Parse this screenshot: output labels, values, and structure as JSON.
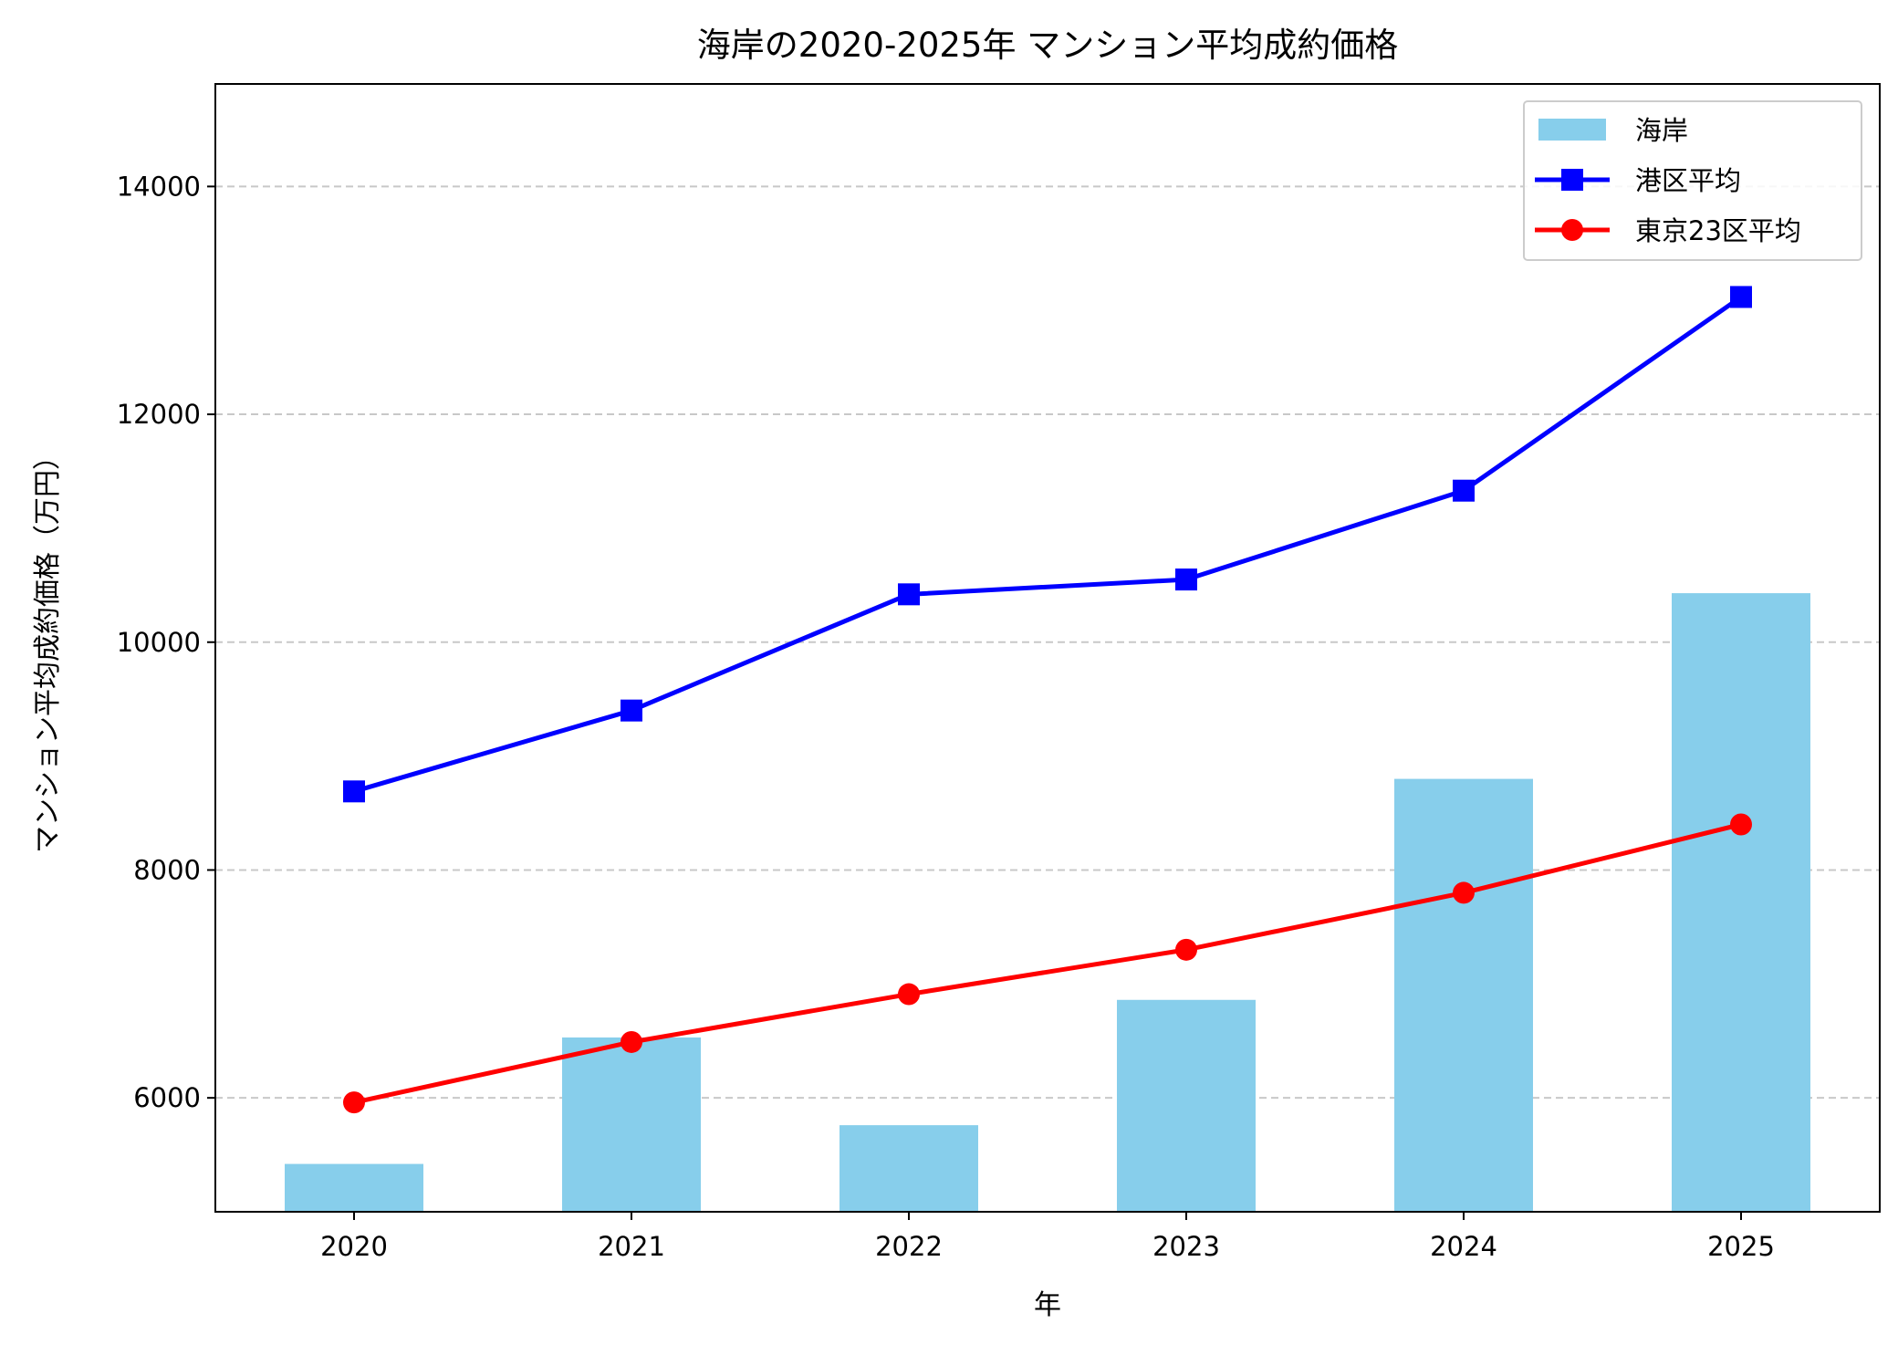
{
  "chart_data": {
    "type": "bar+line",
    "title": "海岸の2020-2025年 マンション平均成約価格",
    "xlabel": "年",
    "ylabel": "マンション平均成約価格（万円）",
    "categories": [
      "2020",
      "2021",
      "2022",
      "2023",
      "2024",
      "2025"
    ],
    "ylim": [
      5000,
      14900
    ],
    "yticks": [
      6000,
      8000,
      10000,
      12000,
      14000
    ],
    "grid": "y, dashed",
    "legend_position": "top-right",
    "series": [
      {
        "name": "海岸",
        "kind": "bar",
        "color": "#87CEEB",
        "values": [
          5420,
          6530,
          5760,
          6860,
          8800,
          10430
        ]
      },
      {
        "name": "港区平均",
        "kind": "line",
        "marker": "square",
        "color": "#0000FF",
        "values": [
          8690,
          9400,
          10420,
          10550,
          11330,
          13030
        ]
      },
      {
        "name": "東京23区平均",
        "kind": "line",
        "marker": "circle",
        "color": "#FF0000",
        "values": [
          5960,
          6490,
          6910,
          7300,
          7800,
          8400
        ]
      }
    ]
  }
}
